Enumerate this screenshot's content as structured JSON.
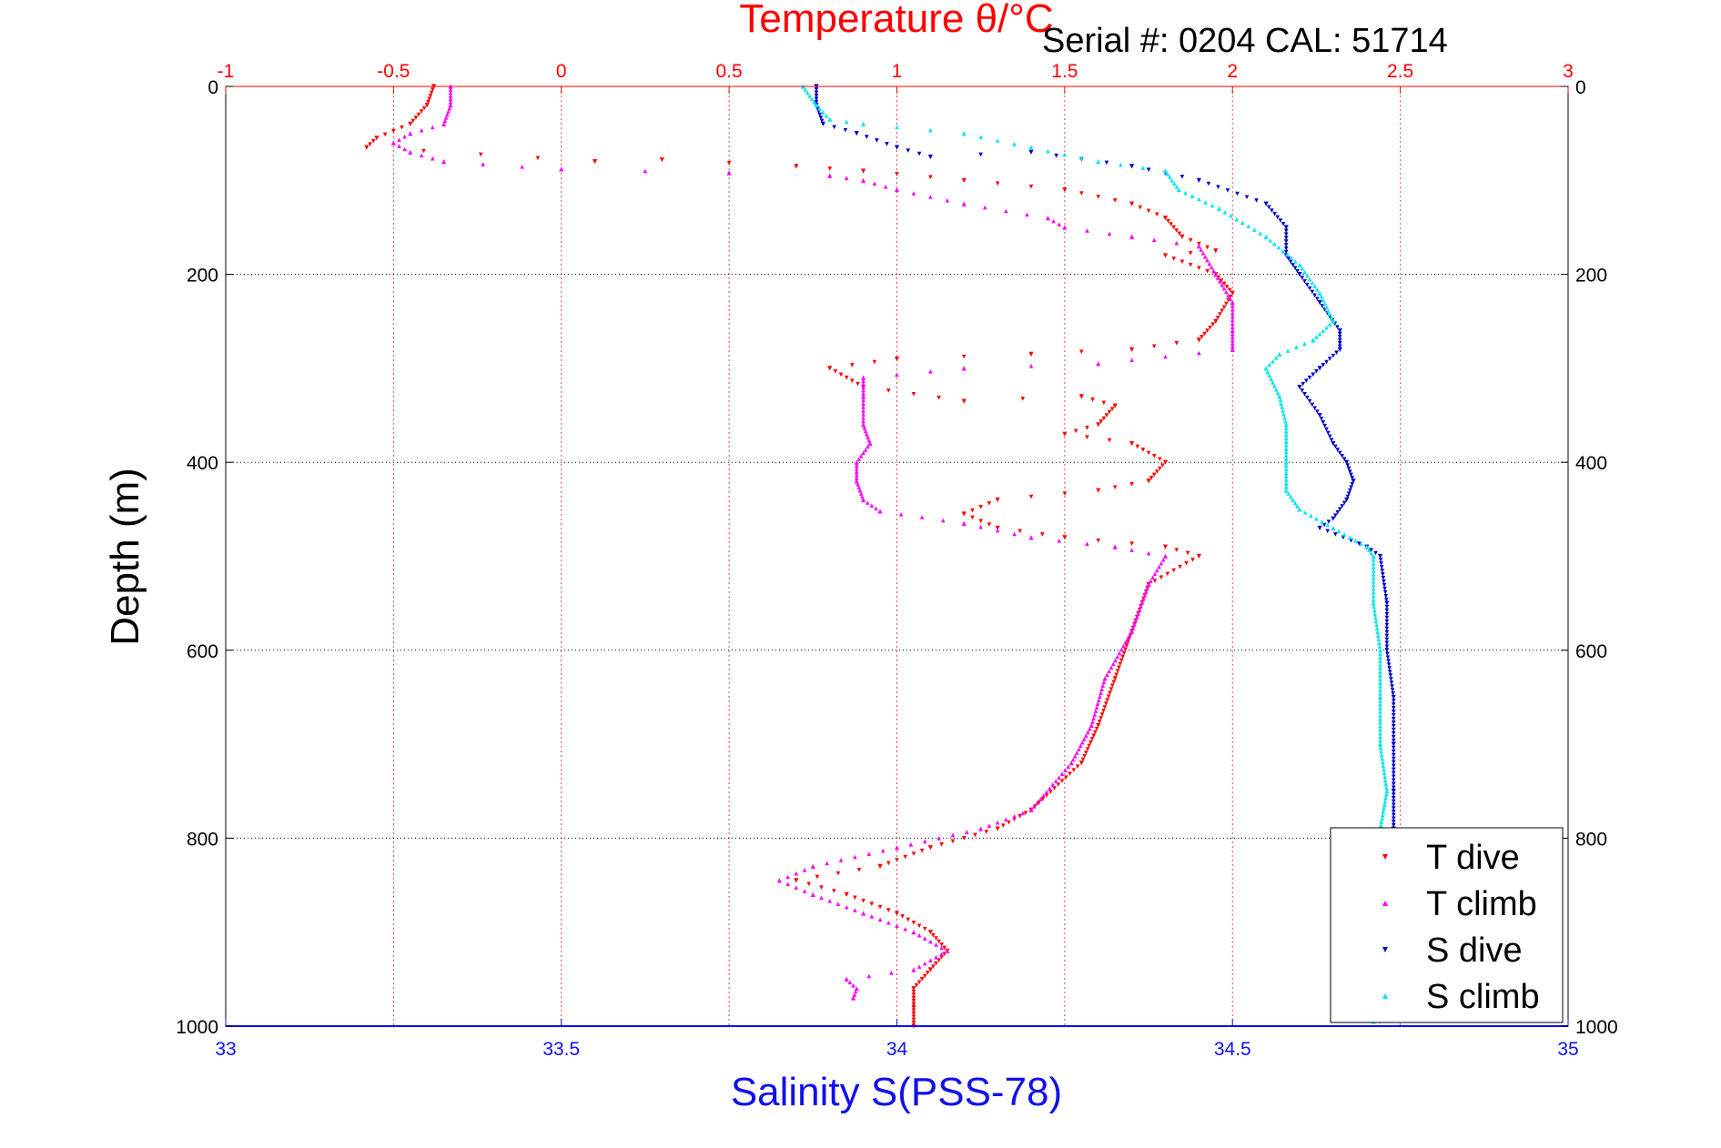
{
  "chart_data": {
    "type": "scatter",
    "title": "Temperature θ/°C",
    "annotation": "Serial #: 0204  CAL: 51714",
    "ylabel": "Depth (m)",
    "xlabel_bottom": "Salinity S(PSS-78)",
    "xlabel_top": "Temperature θ/°C",
    "ylim": [
      0,
      1000
    ],
    "y_reversed": true,
    "y_ticks": [
      "0",
      "200",
      "400",
      "600",
      "800",
      "1000"
    ],
    "x_bottom_lim": [
      33,
      35
    ],
    "x_bottom_ticks": [
      "33",
      "33.5",
      "34",
      "34.5",
      "35"
    ],
    "x_top_lim": [
      -1,
      3
    ],
    "x_top_ticks": [
      "-1",
      "-0.5",
      "0",
      "0.5",
      "1",
      "1.5",
      "2",
      "2.5",
      "3"
    ],
    "grid": true,
    "legend_position": "bottom-right",
    "series": [
      {
        "name": "T dive",
        "axis": "temperature",
        "color": "#ff0000",
        "marker": "triangle-down",
        "points": [
          [
            -0.38,
            0
          ],
          [
            -0.4,
            20
          ],
          [
            -0.45,
            40
          ],
          [
            -0.55,
            55
          ],
          [
            -0.58,
            65
          ],
          [
            0.1,
            80
          ],
          [
            0.3,
            78
          ],
          [
            0.7,
            85
          ],
          [
            0.9,
            90
          ],
          [
            1.2,
            100
          ],
          [
            1.5,
            110
          ],
          [
            1.7,
            125
          ],
          [
            1.8,
            140
          ],
          [
            1.85,
            160
          ],
          [
            1.95,
            175
          ],
          [
            1.8,
            180
          ],
          [
            1.95,
            200
          ],
          [
            2.0,
            220
          ],
          [
            1.95,
            250
          ],
          [
            1.9,
            270
          ],
          [
            1.7,
            280
          ],
          [
            1.4,
            285
          ],
          [
            1.0,
            290
          ],
          [
            0.8,
            300
          ],
          [
            0.9,
            320
          ],
          [
            1.2,
            335
          ],
          [
            1.55,
            330
          ],
          [
            1.65,
            340
          ],
          [
            1.6,
            360
          ],
          [
            1.5,
            370
          ],
          [
            1.7,
            380
          ],
          [
            1.8,
            400
          ],
          [
            1.75,
            420
          ],
          [
            1.6,
            430
          ],
          [
            1.3,
            440
          ],
          [
            1.2,
            455
          ],
          [
            1.3,
            470
          ],
          [
            1.5,
            480
          ],
          [
            1.8,
            490
          ],
          [
            1.9,
            500
          ],
          [
            1.75,
            530
          ],
          [
            1.7,
            580
          ],
          [
            1.65,
            630
          ],
          [
            1.6,
            680
          ],
          [
            1.55,
            720
          ],
          [
            1.4,
            770
          ],
          [
            1.3,
            790
          ],
          [
            1.1,
            810
          ],
          [
            0.95,
            830
          ],
          [
            0.7,
            845
          ],
          [
            0.85,
            860
          ],
          [
            1.0,
            880
          ],
          [
            1.1,
            900
          ],
          [
            1.15,
            920
          ],
          [
            1.1,
            940
          ],
          [
            1.05,
            960
          ],
          [
            1.05,
            980
          ],
          [
            1.05,
            1000
          ]
        ]
      },
      {
        "name": "T climb",
        "axis": "temperature",
        "color": "#ff00ff",
        "marker": "triangle-up",
        "points": [
          [
            -0.33,
            0
          ],
          [
            -0.33,
            20
          ],
          [
            -0.35,
            40
          ],
          [
            -0.45,
            50
          ],
          [
            -0.5,
            60
          ],
          [
            -0.45,
            70
          ],
          [
            -0.35,
            80
          ],
          [
            0.0,
            88
          ],
          [
            0.5,
            92
          ],
          [
            0.8,
            95
          ],
          [
            0.9,
            100
          ],
          [
            1.0,
            110
          ],
          [
            1.2,
            125
          ],
          [
            1.45,
            140
          ],
          [
            1.5,
            150
          ],
          [
            1.7,
            160
          ],
          [
            1.9,
            170
          ],
          [
            1.95,
            200
          ],
          [
            2.0,
            230
          ],
          [
            2.0,
            260
          ],
          [
            2.0,
            280
          ],
          [
            1.6,
            295
          ],
          [
            1.2,
            300
          ],
          [
            0.9,
            310
          ],
          [
            0.9,
            330
          ],
          [
            0.9,
            360
          ],
          [
            0.92,
            380
          ],
          [
            0.88,
            400
          ],
          [
            0.88,
            420
          ],
          [
            0.9,
            440
          ],
          [
            0.95,
            452
          ],
          [
            1.2,
            465
          ],
          [
            1.4,
            480
          ],
          [
            1.65,
            490
          ],
          [
            1.8,
            500
          ],
          [
            1.75,
            530
          ],
          [
            1.7,
            580
          ],
          [
            1.62,
            630
          ],
          [
            1.58,
            680
          ],
          [
            1.52,
            720
          ],
          [
            1.4,
            770
          ],
          [
            1.25,
            790
          ],
          [
            1.0,
            810
          ],
          [
            0.75,
            830
          ],
          [
            0.65,
            845
          ],
          [
            0.75,
            860
          ],
          [
            0.9,
            880
          ],
          [
            1.05,
            900
          ],
          [
            1.15,
            920
          ],
          [
            1.05,
            940
          ],
          [
            0.85,
            950
          ],
          [
            0.88,
            960
          ],
          [
            0.87,
            970
          ]
        ]
      },
      {
        "name": "S dive",
        "axis": "salinity",
        "color": "#0000cc",
        "marker": "triangle-down",
        "points": [
          [
            33.88,
            0
          ],
          [
            33.88,
            20
          ],
          [
            33.89,
            40
          ],
          [
            33.94,
            50
          ],
          [
            34.0,
            65
          ],
          [
            34.05,
            75
          ],
          [
            34.2,
            70
          ],
          [
            34.35,
            85
          ],
          [
            34.45,
            100
          ],
          [
            34.55,
            125
          ],
          [
            34.58,
            150
          ],
          [
            34.58,
            180
          ],
          [
            34.6,
            200
          ],
          [
            34.63,
            230
          ],
          [
            34.66,
            260
          ],
          [
            34.66,
            280
          ],
          [
            34.63,
            300
          ],
          [
            34.6,
            320
          ],
          [
            34.63,
            350
          ],
          [
            34.65,
            380
          ],
          [
            34.67,
            400
          ],
          [
            34.68,
            420
          ],
          [
            34.67,
            440
          ],
          [
            34.65,
            460
          ],
          [
            34.63,
            470
          ],
          [
            34.7,
            490
          ],
          [
            34.72,
            500
          ],
          [
            34.73,
            550
          ],
          [
            34.73,
            600
          ],
          [
            34.74,
            650
          ],
          [
            34.74,
            700
          ],
          [
            34.74,
            750
          ],
          [
            34.74,
            790
          ],
          [
            34.73,
            800
          ],
          [
            34.72,
            995
          ]
        ]
      },
      {
        "name": "S climb",
        "axis": "salinity",
        "color": "#00e5ee",
        "marker": "triangle-up",
        "points": [
          [
            33.86,
            0
          ],
          [
            33.88,
            20
          ],
          [
            33.9,
            35
          ],
          [
            33.95,
            40
          ],
          [
            34.1,
            50
          ],
          [
            34.2,
            65
          ],
          [
            34.3,
            80
          ],
          [
            34.4,
            90
          ],
          [
            34.42,
            110
          ],
          [
            34.48,
            130
          ],
          [
            34.55,
            160
          ],
          [
            34.6,
            190
          ],
          [
            34.63,
            220
          ],
          [
            34.65,
            250
          ],
          [
            34.62,
            270
          ],
          [
            34.57,
            285
          ],
          [
            34.55,
            300
          ],
          [
            34.57,
            330
          ],
          [
            34.58,
            360
          ],
          [
            34.58,
            400
          ],
          [
            34.58,
            430
          ],
          [
            34.6,
            450
          ],
          [
            34.65,
            470
          ],
          [
            34.7,
            490
          ],
          [
            34.71,
            500
          ],
          [
            34.71,
            550
          ],
          [
            34.72,
            600
          ],
          [
            34.72,
            650
          ],
          [
            34.72,
            700
          ],
          [
            34.73,
            750
          ],
          [
            34.72,
            790
          ],
          [
            34.71,
            800
          ],
          [
            34.71,
            995
          ]
        ]
      }
    ]
  }
}
